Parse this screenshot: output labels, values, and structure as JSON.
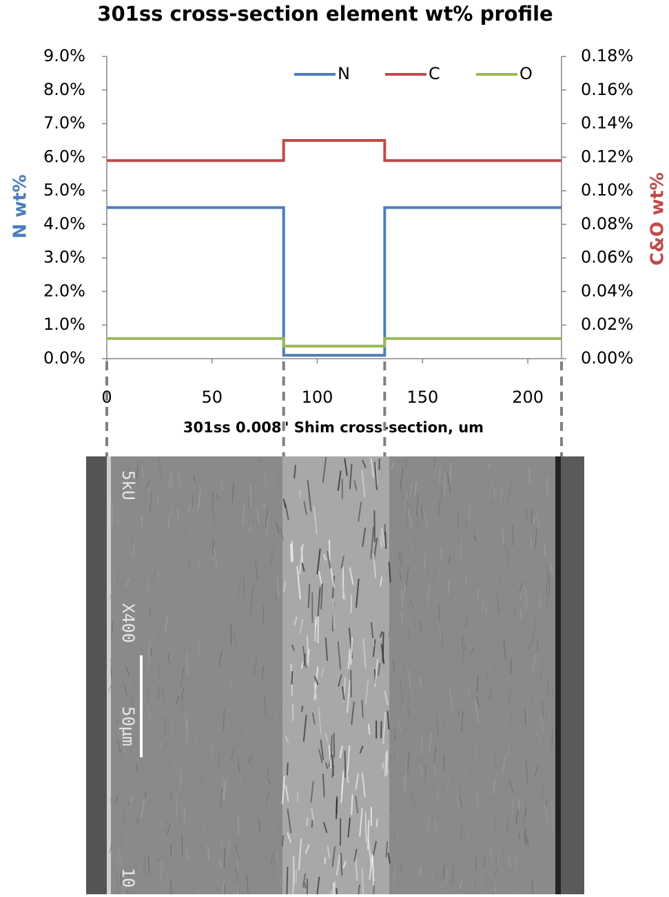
{
  "chart_data": {
    "type": "line",
    "title": "301ss cross-section element wt% profile",
    "x_label": "301ss 0.008\" Shim cross-section, um",
    "y_label": "N  wt%",
    "y2_label": "C&O wt%",
    "x": [
      0,
      84,
      84,
      132,
      132,
      216
    ],
    "series": [
      {
        "name": "N",
        "color": "#4a7ebb",
        "values": [
          4.5,
          4.5,
          0.1,
          0.1,
          4.5,
          4.5
        ]
      },
      {
        "name": "C",
        "color": "#be4b48",
        "axis": "y2",
        "values": [
          0.118,
          0.118,
          0.13,
          0.13,
          0.118,
          0.118
        ]
      },
      {
        "name": "O",
        "color": "#98b954",
        "axis": "y2",
        "values": [
          0.012,
          0.012,
          0.0075,
          0.0075,
          0.012,
          0.012
        ]
      }
    ],
    "xlim": [
      0,
      216
    ],
    "xticks": [
      0,
      50,
      100,
      150,
      200
    ],
    "ylim": [
      0,
      9
    ],
    "yticks": [
      {
        "value": 0,
        "label": "0.0%"
      },
      {
        "value": 1,
        "label": "1.0%"
      },
      {
        "value": 2,
        "label": "2.0%"
      },
      {
        "value": 3,
        "label": "3.0%"
      },
      {
        "value": 4,
        "label": "4.0%"
      },
      {
        "value": 5,
        "label": "5.0%"
      },
      {
        "value": 6,
        "label": "6.0%"
      },
      {
        "value": 7,
        "label": "7.0%"
      },
      {
        "value": 8,
        "label": "8.0%"
      },
      {
        "value": 9,
        "label": "9.0%"
      }
    ],
    "y2lim": [
      0,
      0.18
    ],
    "y2ticks": [
      {
        "value": 0,
        "label": "0.00%"
      },
      {
        "value": 0.02,
        "label": "0.02%"
      },
      {
        "value": 0.04,
        "label": "0.04%"
      },
      {
        "value": 0.06,
        "label": "0.06%"
      },
      {
        "value": 0.08,
        "label": "0.08%"
      },
      {
        "value": 0.1,
        "label": "0.10%"
      },
      {
        "value": 0.12,
        "label": "0.12%"
      },
      {
        "value": 0.14,
        "label": "0.14%"
      },
      {
        "value": 0.16,
        "label": "0.16%"
      },
      {
        "value": 0.18,
        "label": "0.18%"
      }
    ],
    "grid": false,
    "legend": "top"
  },
  "image": {
    "labels": [
      "5kU",
      "X400",
      "50µm",
      "10"
    ]
  }
}
